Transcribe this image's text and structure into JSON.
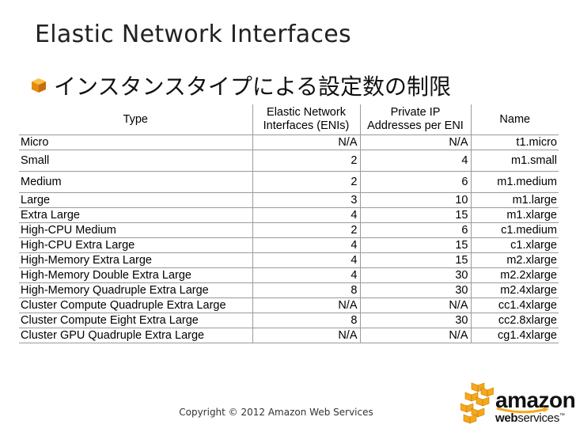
{
  "slide": {
    "title": "Elastic Network Interfaces",
    "bullet": "インスタンスタイプによる設定数の制限",
    "copyright": "Copyright © 2012 Amazon Web Services"
  },
  "table": {
    "headers": {
      "type": "Type",
      "enis_line1": "Elastic Network",
      "enis_line2": "Interfaces (ENIs)",
      "ips_line1": "Private IP",
      "ips_line2": "Addresses per ENI",
      "name": "Name"
    },
    "rows": [
      {
        "type": "Micro",
        "enis": "N/A",
        "ips": "N/A",
        "name": "t1.micro"
      },
      {
        "type": "Small",
        "enis": "2",
        "ips": "4",
        "name": "m1.small"
      },
      {
        "type": "Medium",
        "enis": "2",
        "ips": "6",
        "name": "m1.medium"
      },
      {
        "type": "Large",
        "enis": "3",
        "ips": "10",
        "name": "m1.large"
      },
      {
        "type": "Extra Large",
        "enis": "4",
        "ips": "15",
        "name": "m1.xlarge"
      },
      {
        "type": "High-CPU Medium",
        "enis": "2",
        "ips": "6",
        "name": "c1.medium"
      },
      {
        "type": "High-CPU Extra Large",
        "enis": "4",
        "ips": "15",
        "name": "c1.xlarge"
      },
      {
        "type": "High-Memory Extra Large",
        "enis": "4",
        "ips": "15",
        "name": "m2.xlarge"
      },
      {
        "type": "High-Memory Double Extra Large",
        "enis": "4",
        "ips": "30",
        "name": "m2.2xlarge"
      },
      {
        "type": "High-Memory Quadruple Extra Large",
        "enis": "8",
        "ips": "30",
        "name": "m2.4xlarge"
      },
      {
        "type": "Cluster Compute Quadruple Extra Large",
        "enis": "N/A",
        "ips": "N/A",
        "name": "cc1.4xlarge"
      },
      {
        "type": "Cluster Compute Eight Extra Large",
        "enis": "8",
        "ips": "30",
        "name": "cc2.8xlarge"
      },
      {
        "type": "Cluster GPU Quadruple Extra Large",
        "enis": "N/A",
        "ips": "N/A",
        "name": "cg1.4xlarge"
      }
    ]
  },
  "logo": {
    "word": "amazon",
    "sub_a": "web",
    "sub_b": "services",
    "tm": "™",
    "icon": "aws-boxes-icon",
    "brand_color": "#f7a81b",
    "bullet_icon": "cube-bullet-icon"
  }
}
